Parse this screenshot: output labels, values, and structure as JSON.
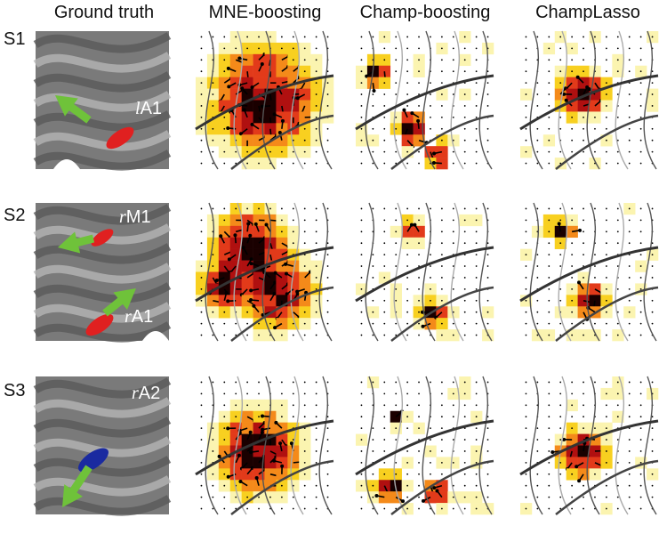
{
  "columns": [
    "Ground truth",
    "MNE-boosting",
    "Champ-boosting",
    "ChampLasso"
  ],
  "rows": [
    {
      "label": "S1",
      "regions": [
        {
          "hemisphere": "l",
          "area": "A1"
        }
      ]
    },
    {
      "label": "S2",
      "regions": [
        {
          "hemisphere": "r",
          "area": "M1"
        },
        {
          "hemisphere": "r",
          "area": "A1"
        }
      ]
    },
    {
      "label": "S3",
      "regions": [
        {
          "hemisphere": "r",
          "area": "A2"
        }
      ]
    }
  ]
}
